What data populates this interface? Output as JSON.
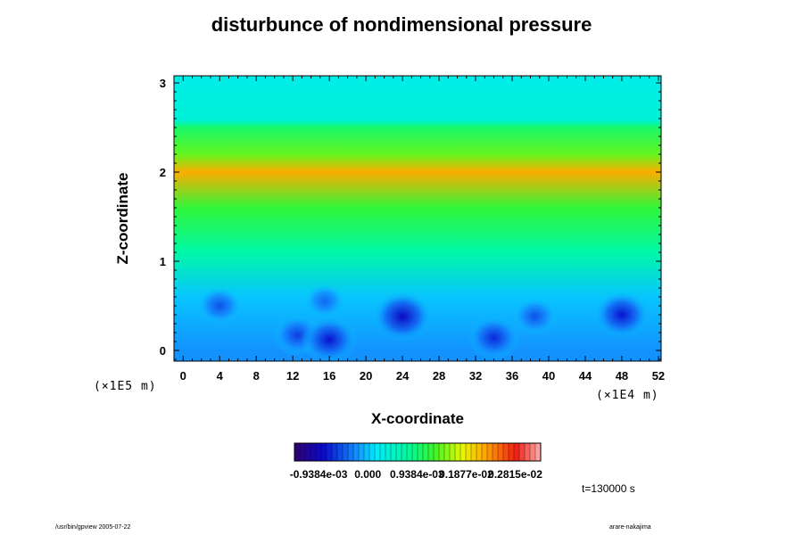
{
  "chart_data": {
    "type": "heatmap",
    "title": "disturbunce of nondimensional pressure",
    "xlabel": "X-coordinate",
    "ylabel": "Z-coordinate",
    "x_ticks": [
      0,
      4,
      8,
      12,
      16,
      20,
      24,
      28,
      32,
      36,
      40,
      44,
      48,
      52
    ],
    "y_ticks": [
      0,
      1,
      2,
      3
    ],
    "xlim": [
      -1,
      52.3
    ],
    "ylim": [
      -0.12,
      3.08
    ],
    "x_scale_label": "(×1E4 m)",
    "y_scale_label": "(×1E5 m)",
    "colorbar": {
      "labels": [
        "-0.9384e-03",
        "0.000",
        "0.9384e-03",
        "0.1877e-02",
        "0.2815e-02"
      ],
      "values": [
        -0.0009384,
        0.0,
        0.0009384,
        0.001877,
        0.002815
      ],
      "min": -0.0014,
      "max": 0.0033
    },
    "field_summary": [
      {
        "z": 3.0,
        "value": 0.0003
      },
      {
        "z": 2.58,
        "value": 0.0004
      },
      {
        "z": 2.5,
        "value": 0.001
      },
      {
        "z": 2.2,
        "value": 0.0014
      },
      {
        "z": 2.0,
        "value": 0.0022
      },
      {
        "z": 1.6,
        "value": 0.0012
      },
      {
        "z": 1.1,
        "value": 0.0007
      },
      {
        "z": 0.6,
        "value": 0.0
      },
      {
        "z": 0.0,
        "value": -0.0002
      }
    ],
    "minima": [
      {
        "x": 4,
        "z": 0.5,
        "value": -0.0005
      },
      {
        "x": 12.5,
        "z": 0.17,
        "value": -0.0006
      },
      {
        "x": 15.5,
        "z": 0.55,
        "value": -0.0004
      },
      {
        "x": 16,
        "z": 0.12,
        "value": -0.0008
      },
      {
        "x": 24,
        "z": 0.38,
        "value": -0.0009
      },
      {
        "x": 34,
        "z": 0.14,
        "value": -0.0007
      },
      {
        "x": 38.5,
        "z": 0.38,
        "value": -0.0005
      },
      {
        "x": 48,
        "z": 0.4,
        "value": -0.0008
      }
    ],
    "time_label": "t=130000 s"
  },
  "footer": {
    "left": "/usr/bin/gpview 2005-07-22",
    "right": "arare-nakajima"
  },
  "colors": {
    "background": "#ffffff",
    "frame": "#000000"
  }
}
